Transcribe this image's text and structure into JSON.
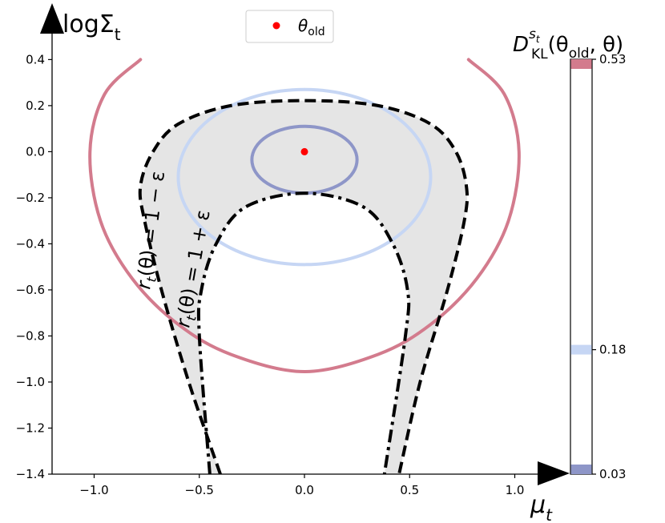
{
  "chart_data": {
    "type": "contour",
    "xlabel_base": "μ",
    "xlabel_sub": "t",
    "ylabel_base": "logΣ",
    "ylabel_sub": "t",
    "xlim": [
      -1.2,
      1.2
    ],
    "ylim": [
      -1.4,
      0.45
    ],
    "xticks": [
      -1.0,
      -0.5,
      0.0,
      0.5,
      1.0
    ],
    "xtick_labels": [
      "−1.0",
      "−0.5",
      "0.0",
      "0.5",
      "1.0"
    ],
    "yticks": [
      0.4,
      0.2,
      0.0,
      -0.2,
      -0.4,
      -0.6,
      -0.8,
      -1.0,
      -1.2,
      -1.4
    ],
    "ytick_labels": [
      "0.4",
      "0.2",
      "0.0",
      "−0.2",
      "−0.4",
      "−0.6",
      "−0.8",
      "−1.0",
      "−1.2",
      "−1.4"
    ],
    "grid": false,
    "legend": {
      "placement": "top-center",
      "label_base": "θ",
      "label_sub": "old"
    },
    "theta_old": {
      "x": 0.0,
      "y": 0.0,
      "color": "#ff0000"
    },
    "kl_contours": [
      {
        "level": 0.03,
        "color": "#8e96c8",
        "center_x": 0.0,
        "top_y": 0.11,
        "bottom_y": -0.18,
        "half_width": 0.25
      },
      {
        "level": 0.18,
        "color": "#c6d6f4",
        "center_x": 0.0,
        "top_y": 0.27,
        "bottom_y": -0.49,
        "half_width": 0.6
      },
      {
        "level": 0.53,
        "color": "#d37b8d",
        "points": [
          [
            -0.78,
            0.4
          ],
          [
            -0.95,
            0.25
          ],
          [
            -1.02,
            0.0
          ],
          [
            -0.97,
            -0.3
          ],
          [
            -0.82,
            -0.55
          ],
          [
            -0.6,
            -0.75
          ],
          [
            -0.35,
            -0.88
          ],
          [
            0.0,
            -0.955
          ],
          [
            0.35,
            -0.88
          ],
          [
            0.6,
            -0.75
          ],
          [
            0.82,
            -0.55
          ],
          [
            0.97,
            -0.3
          ],
          [
            1.02,
            0.0
          ],
          [
            0.95,
            0.25
          ],
          [
            0.78,
            0.4
          ]
        ]
      }
    ],
    "ratio_curves": [
      {
        "label": "r_t(θ) = 1 − ε",
        "style": "dashed",
        "points": [
          [
            -0.4,
            -1.4
          ],
          [
            -0.55,
            -1.0
          ],
          [
            -0.68,
            -0.6
          ],
          [
            -0.76,
            -0.3
          ],
          [
            -0.78,
            -0.15
          ],
          [
            -0.72,
            0.0
          ],
          [
            -0.6,
            0.12
          ],
          [
            -0.35,
            0.2
          ],
          [
            0.0,
            0.222
          ],
          [
            0.35,
            0.2
          ],
          [
            0.6,
            0.12
          ],
          [
            0.72,
            0.0
          ],
          [
            0.77,
            -0.15
          ],
          [
            0.76,
            -0.3
          ],
          [
            0.68,
            -0.6
          ],
          [
            0.55,
            -1.0
          ],
          [
            0.45,
            -1.4
          ]
        ]
      },
      {
        "label": "r_t(θ) = 1 + ε",
        "style": "dashdot",
        "points": [
          [
            -0.45,
            -1.4
          ],
          [
            -0.5,
            -0.8
          ],
          [
            -0.49,
            -0.6
          ],
          [
            -0.42,
            -0.4
          ],
          [
            -0.28,
            -0.24
          ],
          [
            0.0,
            -0.18
          ],
          [
            0.28,
            -0.24
          ],
          [
            0.42,
            -0.4
          ],
          [
            0.49,
            -0.6
          ],
          [
            0.48,
            -0.8
          ],
          [
            0.38,
            -1.4
          ]
        ]
      }
    ],
    "ratio_labels": [
      "r",
      "t",
      "(θ) = 1 − ε",
      "r",
      "t",
      "(θ) = 1 + ε"
    ],
    "shaded_region_color": "#e5e5e5",
    "colorbar": {
      "title_base": "D",
      "title_sub": "KL",
      "title_sup": "s",
      "title_sup_sub": "t",
      "title_args": "(θ",
      "title_args_sub": "old",
      "title_args_end": ", θ)",
      "min": 0.03,
      "max": 0.53,
      "ticks": [
        0.53,
        0.18,
        0.03
      ],
      "tick_labels": [
        "0.53",
        "0.18",
        "0.03"
      ],
      "bands": [
        {
          "level": 0.53,
          "color": "#d37b8d"
        },
        {
          "level": 0.18,
          "color": "#c6d6f4"
        },
        {
          "level": 0.03,
          "color": "#8e96c8"
        }
      ]
    }
  }
}
